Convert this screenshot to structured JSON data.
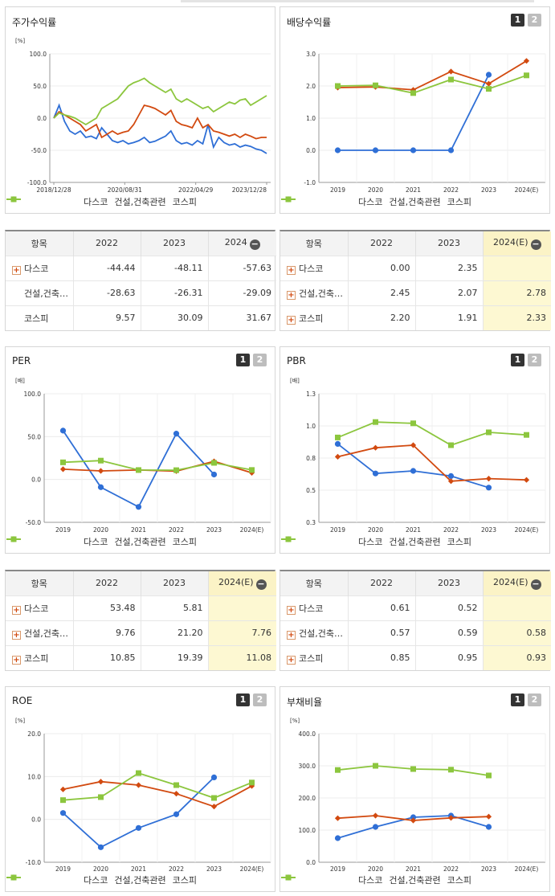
{
  "colors": {
    "daesco": "#2f6fd6",
    "construction": "#d24a10",
    "kospi": "#8cc63e"
  },
  "legend": [
    "다스코",
    "건설,건축관련",
    "코스피"
  ],
  "pager": [
    "1",
    "2"
  ],
  "charts": [
    {
      "id": "stock",
      "title": "주가수익률",
      "unit": "[%]",
      "pager": false,
      "chart_data": {
        "type": "line",
        "xlabels": [
          "2018/12/28",
          "2020/08/31",
          "2022/04/29",
          "2023/12/28"
        ],
        "yticks": [
          "100.0",
          "50.0",
          "0.0",
          "-50.0",
          "-100.0"
        ],
        "ylim": [
          -100,
          100
        ],
        "series": [
          {
            "name": "다스코",
            "values": [
              0,
              20,
              -5,
              -20,
              -25,
              -20,
              -30,
              -28,
              -32,
              -15,
              -25,
              -35,
              -38,
              -35,
              -40,
              -38,
              -35,
              -30,
              -38,
              -36,
              -32,
              -28,
              -20,
              -35,
              -40,
              -38,
              -42,
              -35,
              -40,
              -10,
              -45,
              -30,
              -38,
              -42,
              -40,
              -45,
              -42,
              -44,
              -48,
              -50,
              -55
            ]
          },
          {
            "name": "건설,건축관련",
            "values": [
              0,
              10,
              5,
              0,
              -5,
              -10,
              -20,
              -15,
              -10,
              -30,
              -25,
              -20,
              -25,
              -22,
              -20,
              -10,
              5,
              20,
              18,
              15,
              10,
              5,
              12,
              -5,
              -10,
              -12,
              -15,
              0,
              -15,
              -10,
              -20,
              -22,
              -25,
              -28,
              -25,
              -30,
              -25,
              -28,
              -32,
              -30,
              -30
            ]
          },
          {
            "name": "코스피",
            "values": [
              0,
              8,
              5,
              3,
              0,
              -5,
              -10,
              -5,
              0,
              15,
              20,
              25,
              30,
              40,
              50,
              55,
              58,
              62,
              55,
              50,
              45,
              40,
              45,
              30,
              25,
              30,
              25,
              20,
              15,
              18,
              10,
              15,
              20,
              25,
              22,
              28,
              30,
              20,
              25,
              30,
              35
            ]
          }
        ]
      }
    },
    {
      "id": "dividend",
      "title": "배당수익률",
      "unit": "",
      "pager": true,
      "chart_data": {
        "type": "line",
        "xlabels": [
          "2019",
          "2020",
          "2021",
          "2022",
          "2023",
          "2024(E)"
        ],
        "yticks": [
          "3.0",
          "2.0",
          "1.0",
          "0.0",
          "-1.0"
        ],
        "ylim": [
          -1,
          3
        ],
        "series": [
          {
            "name": "다스코",
            "values": [
              0,
              0,
              0,
              0,
              2.35,
              null
            ]
          },
          {
            "name": "건설,건축관련",
            "values": [
              1.95,
              1.97,
              1.88,
              2.45,
              2.07,
              2.78
            ]
          },
          {
            "name": "코스피",
            "values": [
              2.0,
              2.02,
              1.78,
              2.2,
              1.91,
              2.33
            ]
          }
        ]
      }
    },
    {
      "id": "per",
      "title": "PER",
      "unit": "[배]",
      "pager": true,
      "chart_data": {
        "type": "line",
        "xlabels": [
          "2019",
          "2020",
          "2021",
          "2022",
          "2023",
          "2024(E)"
        ],
        "yticks": [
          "100.0",
          "50.0",
          "0.0",
          "-50.0"
        ],
        "ylim": [
          -50,
          100
        ],
        "series": [
          {
            "name": "다스코",
            "values": [
              57,
              -9,
              -32,
              53.48,
              5.81,
              null
            ]
          },
          {
            "name": "건설,건축관련",
            "values": [
              12,
              10,
              11,
              9.76,
              21.2,
              7.76
            ]
          },
          {
            "name": "코스피",
            "values": [
              20,
              22,
              11,
              10.85,
              19.39,
              11.08
            ]
          }
        ]
      }
    },
    {
      "id": "pbr",
      "title": "PBR",
      "unit": "[배]",
      "pager": true,
      "chart_data": {
        "type": "line",
        "xlabels": [
          "2019",
          "2020",
          "2021",
          "2022",
          "2023",
          "2024(E)"
        ],
        "yticks": [
          "1.3",
          "1.0",
          "0.8",
          "0.5",
          "0.3"
        ],
        "ylim": [
          0.25,
          1.25
        ],
        "series": [
          {
            "name": "다스코",
            "values": [
              0.86,
              0.63,
              0.65,
              0.61,
              0.52,
              null
            ]
          },
          {
            "name": "건설,건축관련",
            "values": [
              0.76,
              0.83,
              0.85,
              0.57,
              0.59,
              0.58
            ]
          },
          {
            "name": "코스피",
            "values": [
              0.91,
              1.03,
              1.02,
              0.85,
              0.95,
              0.93
            ]
          }
        ]
      }
    },
    {
      "id": "roe",
      "title": "ROE",
      "unit": "[%]",
      "pager": true,
      "chart_data": {
        "type": "line",
        "xlabels": [
          "2019",
          "2020",
          "2021",
          "2022",
          "2023",
          "2024(E)"
        ],
        "yticks": [
          "20.0",
          "10.0",
          "0.0",
          "-10.0"
        ],
        "ylim": [
          -10,
          20
        ],
        "series": [
          {
            "name": "다스코",
            "values": [
              1.5,
              -6.5,
              -2,
              1.2,
              9.8,
              null
            ]
          },
          {
            "name": "건설,건축관련",
            "values": [
              7,
              8.8,
              8,
              6,
              3,
              7.8
            ]
          },
          {
            "name": "코스피",
            "values": [
              4.5,
              5.2,
              10.8,
              8,
              5,
              8.6
            ]
          }
        ]
      }
    },
    {
      "id": "debt",
      "title": "부채비율",
      "unit": "[%]",
      "pager": true,
      "chart_data": {
        "type": "line",
        "xlabels": [
          "2019",
          "2020",
          "2021",
          "2022",
          "2023",
          "2024(E)"
        ],
        "yticks": [
          "400.0",
          "300.0",
          "200.0",
          "100.0",
          "0.0"
        ],
        "ylim": [
          0,
          400
        ],
        "series": [
          {
            "name": "다스코",
            "values": [
              75,
              110,
              140,
              145,
              110,
              null
            ]
          },
          {
            "name": "건설,건축관련",
            "values": [
              137,
              145,
              130,
              138,
              142,
              null
            ]
          },
          {
            "name": "코스피",
            "values": [
              287,
              300,
              290,
              288,
              270,
              null
            ]
          }
        ]
      }
    }
  ],
  "tables": [
    {
      "id": "stock",
      "header": [
        "항목",
        "2022",
        "2023",
        "2024"
      ],
      "rows": [
        {
          "label": "다스코",
          "plus": true,
          "values": [
            "-44.44",
            "-48.11",
            "-57.63"
          ]
        },
        {
          "label": "건설,건축…",
          "plus": false,
          "values": [
            "-28.63",
            "-26.31",
            "-29.09"
          ]
        },
        {
          "label": "코스피",
          "plus": false,
          "values": [
            "9.57",
            "30.09",
            "31.67"
          ]
        }
      ]
    },
    {
      "id": "dividend",
      "header": [
        "항목",
        "2022",
        "2023",
        "2024(E)"
      ],
      "rows": [
        {
          "label": "다스코",
          "plus": true,
          "values": [
            "0.00",
            "2.35",
            ""
          ]
        },
        {
          "label": "건설,건축…",
          "plus": true,
          "values": [
            "2.45",
            "2.07",
            "2.78"
          ]
        },
        {
          "label": "코스피",
          "plus": true,
          "values": [
            "2.20",
            "1.91",
            "2.33"
          ]
        }
      ]
    },
    {
      "id": "per",
      "header": [
        "항목",
        "2022",
        "2023",
        "2024(E)"
      ],
      "rows": [
        {
          "label": "다스코",
          "plus": true,
          "values": [
            "53.48",
            "5.81",
            ""
          ]
        },
        {
          "label": "건설,건축…",
          "plus": true,
          "values": [
            "9.76",
            "21.20",
            "7.76"
          ]
        },
        {
          "label": "코스피",
          "plus": true,
          "values": [
            "10.85",
            "19.39",
            "11.08"
          ]
        }
      ]
    },
    {
      "id": "pbr",
      "header": [
        "항목",
        "2022",
        "2023",
        "2024(E)"
      ],
      "rows": [
        {
          "label": "다스코",
          "plus": true,
          "values": [
            "0.61",
            "0.52",
            ""
          ]
        },
        {
          "label": "건설,건축…",
          "plus": true,
          "values": [
            "0.57",
            "0.59",
            "0.58"
          ]
        },
        {
          "label": "코스피",
          "plus": true,
          "values": [
            "0.85",
            "0.95",
            "0.93"
          ]
        }
      ]
    }
  ]
}
